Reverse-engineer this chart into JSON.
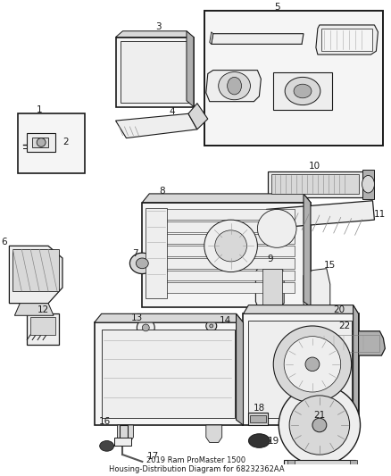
{
  "bg": "#ffffff",
  "fw": 4.38,
  "fh": 5.33,
  "dpi": 100,
  "fs": 7.5,
  "title": "2019 Ram ProMaster 1500\nHousing-Distribution Diagram for 68232362AA",
  "title_fs": 6.0,
  "lc": "#1a1a1a",
  "gray1": "#d8d8d8",
  "gray2": "#eeeeee",
  "gray3": "#b0b0b0",
  "gray4": "#f5f5f5"
}
